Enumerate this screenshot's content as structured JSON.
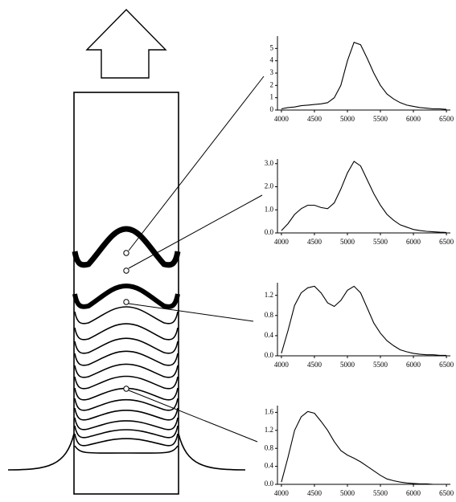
{
  "chart_data": [
    {
      "type": "line",
      "color": "#000000",
      "x": [
        4000,
        4100,
        4200,
        4300,
        4400,
        4500,
        4600,
        4700,
        4800,
        4900,
        5000,
        5100,
        5200,
        5300,
        5400,
        5500,
        5600,
        5700,
        5800,
        5900,
        6000,
        6100,
        6200,
        6300,
        6400,
        6500
      ],
      "values": [
        0.1,
        0.2,
        0.25,
        0.35,
        0.4,
        0.45,
        0.5,
        0.6,
        1.0,
        2.0,
        4.0,
        5.5,
        5.3,
        4.2,
        3.0,
        2.0,
        1.3,
        0.9,
        0.6,
        0.4,
        0.3,
        0.2,
        0.15,
        0.1,
        0.1,
        0.05
      ],
      "xlim": [
        3940,
        6560
      ],
      "ylim": [
        0,
        6
      ],
      "xticks": [
        4000,
        4500,
        5000,
        5500,
        6000,
        6500
      ],
      "yticks": [
        0,
        1,
        2,
        3,
        4,
        5
      ]
    },
    {
      "type": "line",
      "color": "#000000",
      "x": [
        4000,
        4100,
        4200,
        4300,
        4400,
        4500,
        4600,
        4700,
        4800,
        4900,
        5000,
        5100,
        5200,
        5300,
        5400,
        5500,
        5600,
        5700,
        5800,
        5900,
        6000,
        6100,
        6200,
        6300,
        6400,
        6500
      ],
      "values": [
        0.1,
        0.4,
        0.8,
        1.05,
        1.2,
        1.2,
        1.1,
        1.05,
        1.3,
        1.9,
        2.6,
        3.1,
        2.9,
        2.3,
        1.7,
        1.2,
        0.8,
        0.55,
        0.35,
        0.25,
        0.15,
        0.1,
        0.07,
        0.05,
        0.03,
        0.02
      ],
      "xlim": [
        3940,
        6560
      ],
      "ylim": [
        0,
        3.2
      ],
      "xticks": [
        4000,
        4500,
        5000,
        5500,
        6000,
        6500
      ],
      "yticks": [
        {
          "value": 0,
          "label": "0.0"
        },
        {
          "value": 1,
          "label": "1.0"
        },
        {
          "value": 2,
          "label": "2.0"
        },
        {
          "value": 3,
          "label": "3.0"
        }
      ]
    },
    {
      "type": "line",
      "color": "#000000",
      "x": [
        4000,
        4100,
        4200,
        4300,
        4400,
        4500,
        4600,
        4700,
        4800,
        4900,
        5000,
        5100,
        5200,
        5300,
        5400,
        5500,
        5600,
        5700,
        5800,
        5900,
        6000,
        6100,
        6200,
        6300,
        6400,
        6500
      ],
      "values": [
        0.05,
        0.5,
        1.0,
        1.25,
        1.35,
        1.38,
        1.25,
        1.05,
        0.98,
        1.1,
        1.3,
        1.38,
        1.25,
        0.95,
        0.65,
        0.45,
        0.3,
        0.2,
        0.12,
        0.08,
        0.05,
        0.03,
        0.02,
        0.02,
        0.01,
        0.01
      ],
      "xlim": [
        3940,
        6560
      ],
      "ylim": [
        0,
        1.45
      ],
      "xticks": [
        4000,
        4500,
        5000,
        5500,
        6000,
        6500
      ],
      "yticks": [
        {
          "value": 0,
          "label": "0.0"
        },
        0.4,
        0.8,
        1.2
      ]
    },
    {
      "type": "line",
      "color": "#000000",
      "x": [
        4000,
        4100,
        4200,
        4300,
        4400,
        4500,
        4600,
        4700,
        4800,
        4900,
        5000,
        5100,
        5200,
        5300,
        5400,
        5500,
        5600,
        5700,
        5800,
        5900,
        6000,
        6100,
        6200,
        6300,
        6400,
        6500
      ],
      "values": [
        0.05,
        0.6,
        1.2,
        1.5,
        1.62,
        1.58,
        1.4,
        1.2,
        0.95,
        0.75,
        0.65,
        0.58,
        0.5,
        0.4,
        0.3,
        0.2,
        0.12,
        0.08,
        0.05,
        0.03,
        0.02,
        0.01,
        0.01,
        0,
        0,
        0
      ],
      "xlim": [
        3940,
        6560
      ],
      "ylim": [
        0,
        1.75
      ],
      "xticks": [
        4000,
        4500,
        5000,
        5500,
        6000,
        6500
      ],
      "yticks": [
        {
          "value": 0,
          "label": "0.0"
        },
        0.4,
        0.8,
        1.2,
        1.6
      ]
    }
  ]
}
